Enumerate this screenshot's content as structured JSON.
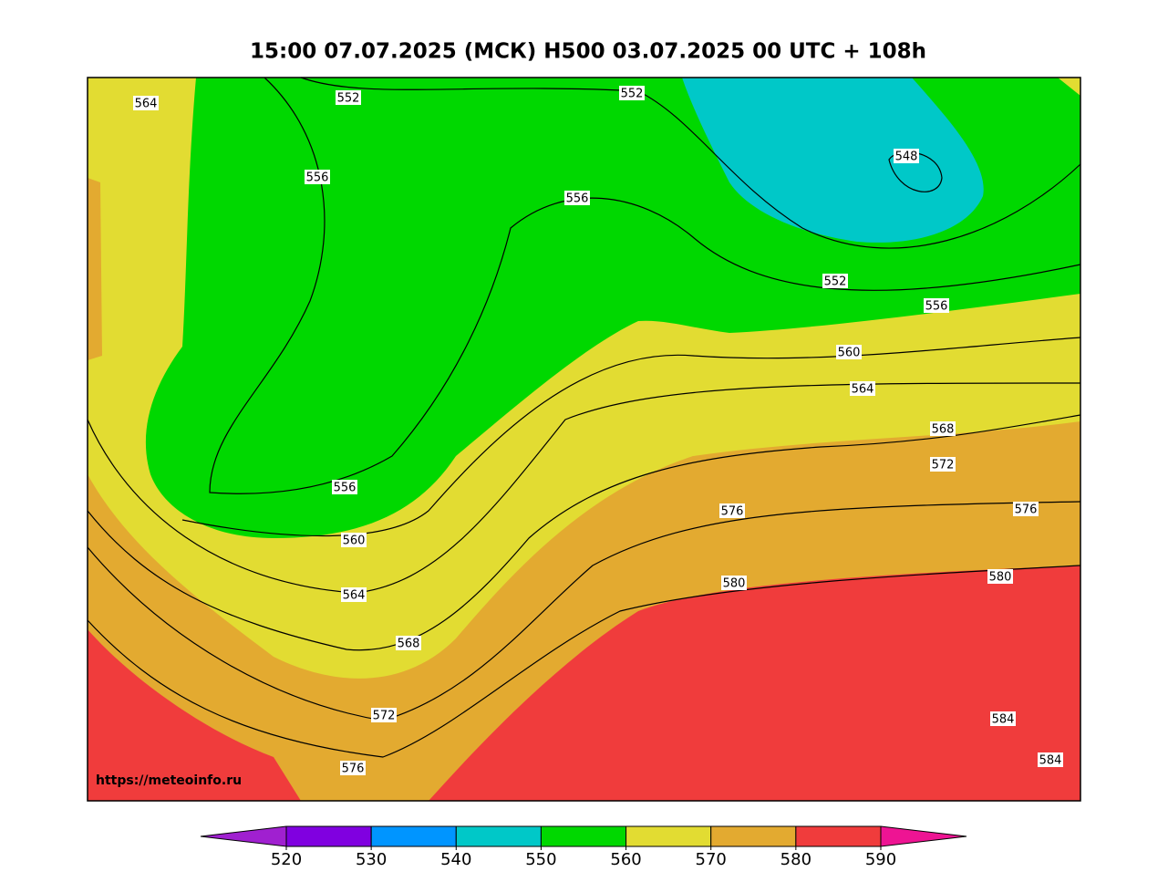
{
  "title": "15:00 07.07.2025 (МСК) H500  03.07.2025 00 UTC + 108h",
  "watermark": "https://meteoinfo.ru",
  "contour_labels": [
    564,
    552,
    552,
    556,
    556,
    548,
    552,
    556,
    560,
    564,
    568,
    572,
    556,
    576,
    576,
    560,
    580,
    580,
    564,
    568,
    572,
    584,
    576,
    584
  ],
  "colorbar": {
    "ticks": [
      520,
      530,
      540,
      550,
      560,
      570,
      580,
      590
    ],
    "colors": [
      "#a020d0",
      "#8000e0",
      "#0095ff",
      "#00c8c8",
      "#00d800",
      "#e2dc32",
      "#e3aa30",
      "#f03c3c",
      "#ee1493"
    ]
  }
}
